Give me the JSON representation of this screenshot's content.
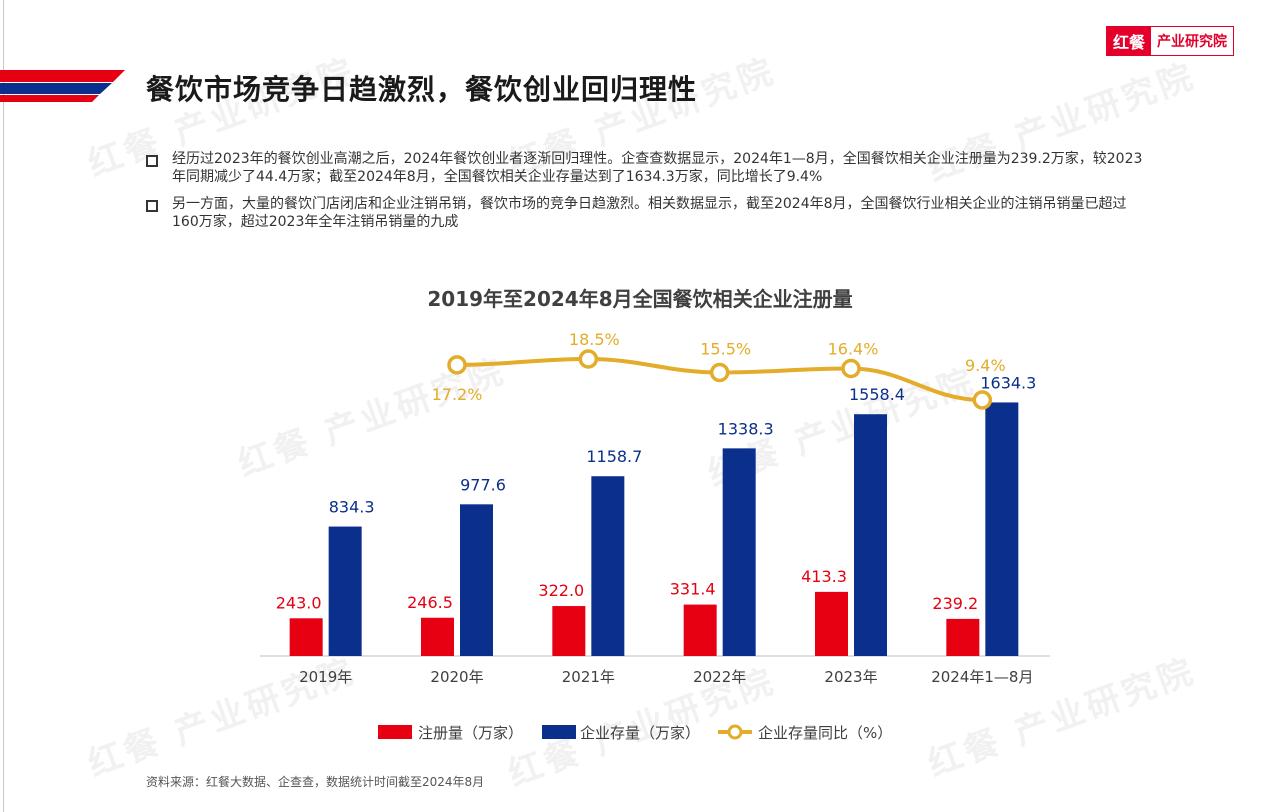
{
  "page": {
    "title": "餐饮市场竞争日趋激烈，餐饮创业回归理性",
    "logo_mark": "红餐",
    "logo_text": "产业研究院",
    "watermark_text": "红餐 产业研究院",
    "bullets": [
      "经历过2023年的餐饮创业高潮之后，2024年餐饮创业者逐渐回归理性。企查查数据显示，2024年1—8月，全国餐饮相关企业注册量为239.2万家，较2023年同期减少了44.4万家；截至2024年8月，全国餐饮相关企业存量达到了1634.3万家，同比增长了9.4%",
      "另一方面，大量的餐饮门店闭店和企业注销吊销，餐饮市场的竞争日趋激烈。相关数据显示，截至2024年8月，全国餐饮行业相关企业的注销吊销量已超过160万家，超过2023年全年注销吊销量的九成"
    ],
    "source": "资料来源：红餐大数据、企查查，数据统计时间截至2024年8月"
  },
  "chart_data": {
    "type": "bar",
    "title": "2019年至2024年8月全国餐饮相关企业注册量",
    "categories": [
      "2019年",
      "2020年",
      "2021年",
      "2022年",
      "2023年",
      "2024年1—8月"
    ],
    "series": [
      {
        "name": "注册量（万家）",
        "type": "bar",
        "color": "#e60012",
        "values": [
          243.0,
          246.5,
          322.0,
          331.4,
          413.3,
          239.2
        ],
        "labels": [
          "243.0",
          "246.5",
          "322.0",
          "331.4",
          "413.3",
          "239.2"
        ]
      },
      {
        "name": "企业存量（万家）",
        "type": "bar",
        "color": "#0a2f8c",
        "values": [
          834.3,
          977.6,
          1158.7,
          1338.3,
          1558.4,
          1634.3
        ],
        "labels": [
          "834.3",
          "977.6",
          "1158.7",
          "1338.3",
          "1558.4",
          "1634.3"
        ]
      },
      {
        "name": "企业存量同比（%）",
        "type": "line",
        "color": "#e3ac2a",
        "x": [
          "2020年",
          "2021年",
          "2022年",
          "2023年",
          "2024年1—8月"
        ],
        "values": [
          17.2,
          18.5,
          15.5,
          16.4,
          9.4
        ],
        "labels": [
          "17.2%",
          "18.5%",
          "15.5%",
          "16.4%",
          "9.4%"
        ]
      }
    ],
    "ylim": [
      0,
      1650
    ],
    "legend": "bottom",
    "grid": false
  }
}
